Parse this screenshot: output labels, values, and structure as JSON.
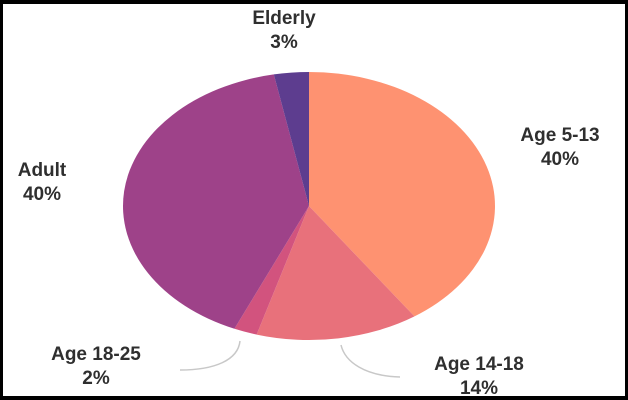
{
  "chart_data": {
    "type": "pie",
    "title": "",
    "slices": [
      {
        "label": "Age 5-13",
        "value": 40,
        "value_label": "40%",
        "color": "#fe9271"
      },
      {
        "label": "Age 14-18",
        "value": 14,
        "value_label": "14%",
        "color": "#e8717b"
      },
      {
        "label": "Age 18-25",
        "value": 2,
        "value_label": "2%",
        "color": "#d2537e"
      },
      {
        "label": "Adult",
        "value": 40,
        "value_label": "40%",
        "color": "#9e4289"
      },
      {
        "label": "Elderly",
        "value": 3,
        "value_label": "3%",
        "color": "#5d3d8f"
      }
    ],
    "start_position": "top",
    "direction": "clockwise",
    "legend": "none"
  }
}
